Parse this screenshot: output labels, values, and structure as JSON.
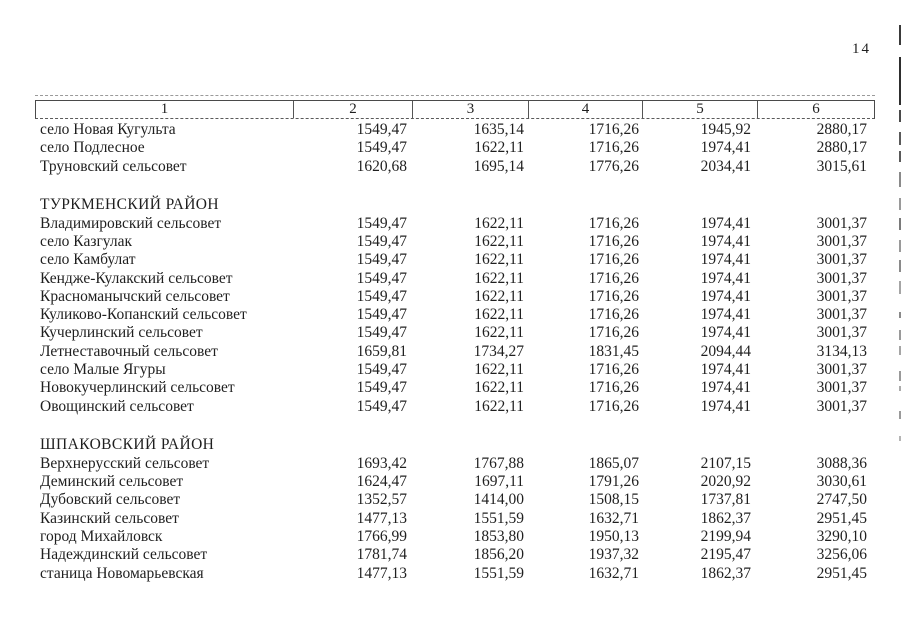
{
  "page": {
    "number": "14"
  },
  "table": {
    "columns": [
      "1",
      "2",
      "3",
      "4",
      "5",
      "6"
    ],
    "rows": [
      {
        "type": "data",
        "name": "село Новая Кугульта",
        "values": [
          "1549,47",
          "1635,14",
          "1716,26",
          "1945,92",
          "2880,17"
        ]
      },
      {
        "type": "data",
        "name": "село Подлесное",
        "values": [
          "1549,47",
          "1622,11",
          "1716,26",
          "1974,41",
          "2880,17"
        ]
      },
      {
        "type": "data",
        "name": "Труновский сельсовет",
        "values": [
          "1620,68",
          "1695,14",
          "1776,26",
          "2034,41",
          "3015,61"
        ]
      },
      {
        "type": "spacer"
      },
      {
        "type": "section",
        "name": "ТУРКМЕНСКИЙ РАЙОН"
      },
      {
        "type": "data",
        "name": "Владимировский сельсовет",
        "values": [
          "1549,47",
          "1622,11",
          "1716,26",
          "1974,41",
          "3001,37"
        ]
      },
      {
        "type": "data",
        "name": "село Казгулак",
        "values": [
          "1549,47",
          "1622,11",
          "1716,26",
          "1974,41",
          "3001,37"
        ]
      },
      {
        "type": "data",
        "name": "село Камбулат",
        "values": [
          "1549,47",
          "1622,11",
          "1716,26",
          "1974,41",
          "3001,37"
        ]
      },
      {
        "type": "data",
        "name": "Кендже-Кулакский сельсовет",
        "values": [
          "1549,47",
          "1622,11",
          "1716,26",
          "1974,41",
          "3001,37"
        ]
      },
      {
        "type": "data",
        "name": "Красноманычский сельсовет",
        "values": [
          "1549,47",
          "1622,11",
          "1716,26",
          "1974,41",
          "3001,37"
        ]
      },
      {
        "type": "data",
        "name": "Куликово-Копанский сельсовет",
        "values": [
          "1549,47",
          "1622,11",
          "1716,26",
          "1974,41",
          "3001,37"
        ]
      },
      {
        "type": "data",
        "name": "Кучерлинский сельсовет",
        "values": [
          "1549,47",
          "1622,11",
          "1716,26",
          "1974,41",
          "3001,37"
        ]
      },
      {
        "type": "data",
        "name": "Летнеставочный сельсовет",
        "values": [
          "1659,81",
          "1734,27",
          "1831,45",
          "2094,44",
          "3134,13"
        ]
      },
      {
        "type": "data",
        "name": "село Малые Ягуры",
        "values": [
          "1549,47",
          "1622,11",
          "1716,26",
          "1974,41",
          "3001,37"
        ]
      },
      {
        "type": "data",
        "name": "Новокучерлинский сельсовет",
        "values": [
          "1549,47",
          "1622,11",
          "1716,26",
          "1974,41",
          "3001,37"
        ]
      },
      {
        "type": "data",
        "name": "Овощинский сельсовет",
        "values": [
          "1549,47",
          "1622,11",
          "1716,26",
          "1974,41",
          "3001,37"
        ]
      },
      {
        "type": "spacer"
      },
      {
        "type": "section",
        "name": "ШПАКОВСКИЙ РАЙОН"
      },
      {
        "type": "data",
        "name": "Верхнерусский сельсовет",
        "values": [
          "1693,42",
          "1767,88",
          "1865,07",
          "2107,15",
          "3088,36"
        ]
      },
      {
        "type": "data",
        "name": "Деминский сельсовет",
        "values": [
          "1624,47",
          "1697,11",
          "1791,26",
          "2020,92",
          "3030,61"
        ]
      },
      {
        "type": "data",
        "name": "Дубовский сельсовет",
        "values": [
          "1352,57",
          "1414,00",
          "1508,15",
          "1737,81",
          "2747,50"
        ]
      },
      {
        "type": "data",
        "name": "Казинский сельсовет",
        "values": [
          "1477,13",
          "1551,59",
          "1632,71",
          "1862,37",
          "2951,45"
        ]
      },
      {
        "type": "data",
        "name": "город Михайловск",
        "values": [
          "1766,99",
          "1853,80",
          "1950,13",
          "2199,94",
          "3290,10"
        ]
      },
      {
        "type": "data",
        "name": "Надеждинский сельсовет",
        "values": [
          "1781,74",
          "1856,20",
          "1937,32",
          "2195,47",
          "3256,06"
        ]
      },
      {
        "type": "data",
        "name": "станица Новомарьевская",
        "values": [
          "1477,13",
          "1551,59",
          "1632,71",
          "1862,37",
          "2951,45"
        ]
      }
    ]
  }
}
